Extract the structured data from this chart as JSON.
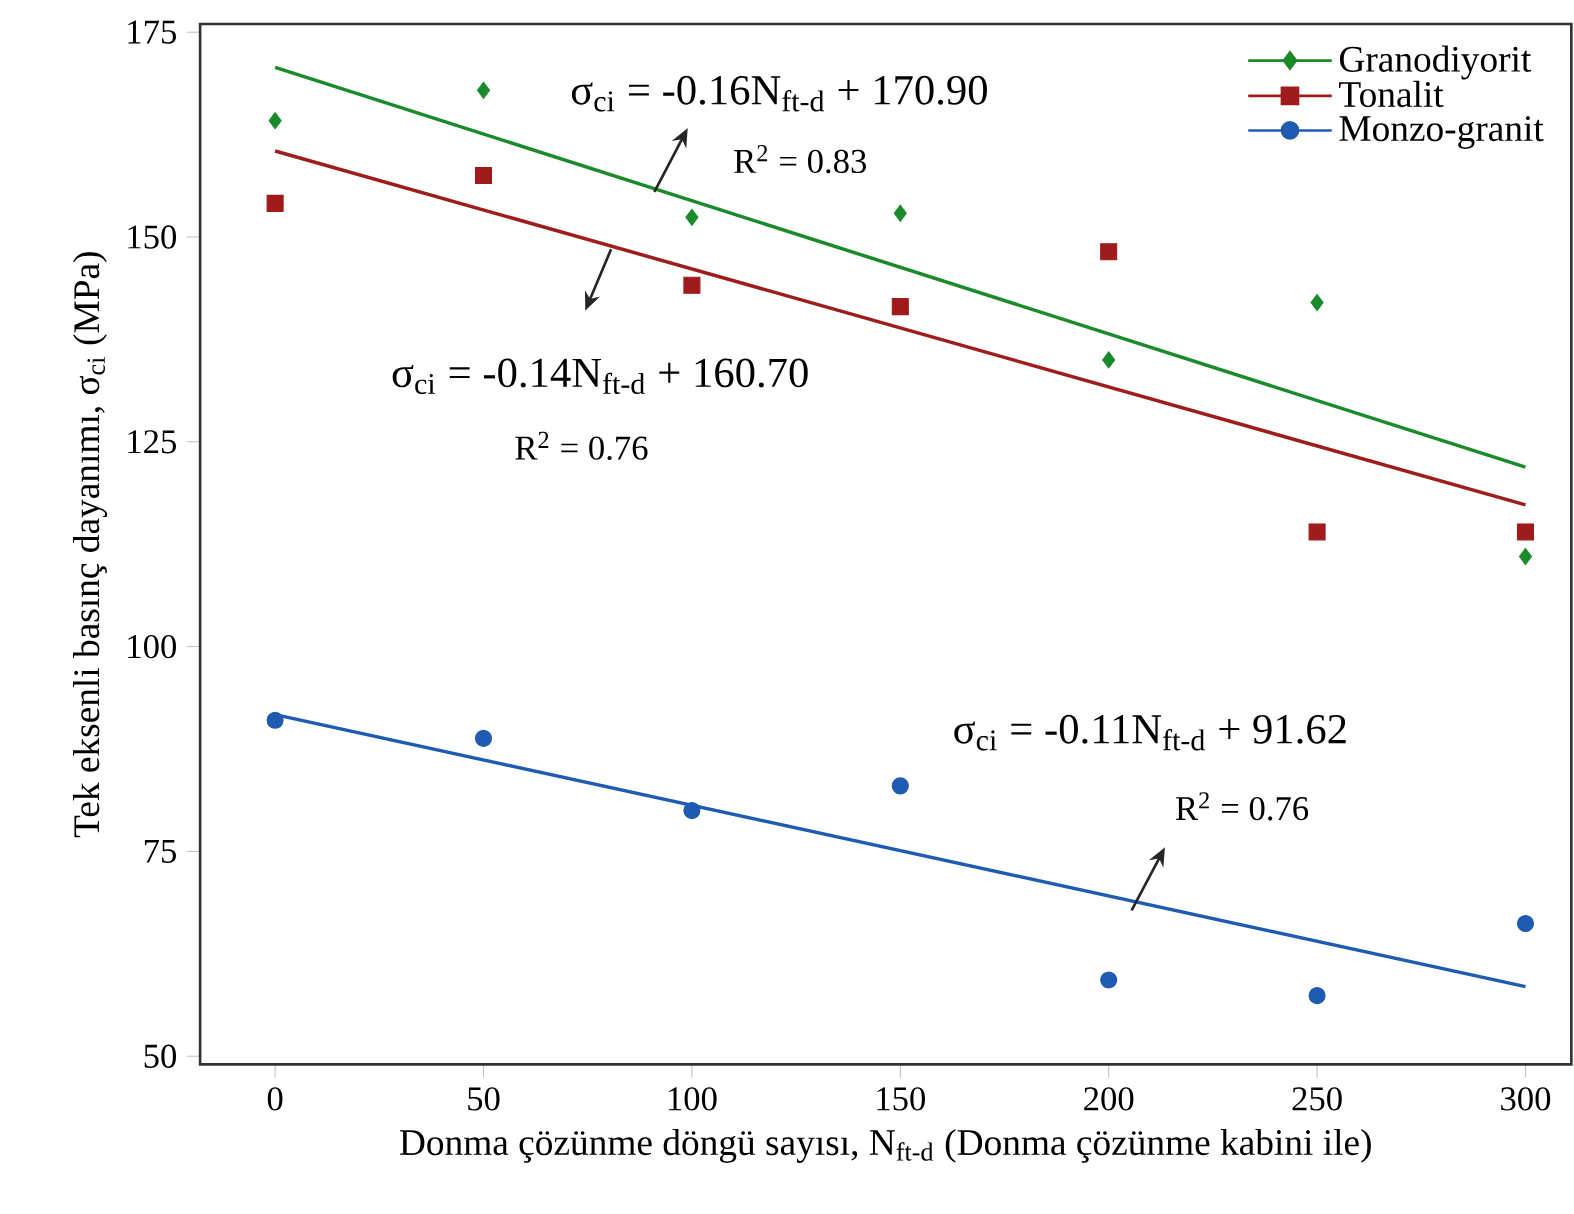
{
  "chart_data": {
    "type": "scatter",
    "xlabel": "Donma çözünme döngü sayısı, N$_{ft-d}$ (Donma çözünme kabini ile)",
    "ylabel": "Tek eksenli basınç dayanımı, σ$_{ci}$ (MPa)",
    "xlim": [
      -18,
      311
    ],
    "ylim": [
      49,
      176
    ],
    "xticks": [
      0,
      50,
      100,
      150,
      200,
      250,
      300
    ],
    "yticks": [
      50,
      75,
      100,
      125,
      150,
      175
    ],
    "grid": false,
    "legend": "top right",
    "series": [
      {
        "name": "Granodiyorit",
        "color": "#1a8a2a",
        "marker": "diamond",
        "x": [
          0,
          50,
          100,
          150,
          200,
          250,
          300
        ],
        "values": [
          164.2,
          167.9,
          152.4,
          152.9,
          135.0,
          142.0,
          111.0
        ]
      },
      {
        "name": "Tonalit",
        "color": "#a01c1c",
        "marker": "square",
        "x": [
          0,
          50,
          100,
          150,
          200,
          250,
          300
        ],
        "values": [
          154.1,
          157.5,
          144.1,
          141.5,
          148.2,
          114.0,
          114.0
        ]
      },
      {
        "name": "Monzo-granit",
        "color": "#1f5bb0",
        "marker": "circle",
        "x": [
          0,
          50,
          100,
          150,
          200,
          250,
          300
        ],
        "values": [
          91.0,
          88.8,
          80.0,
          83.0,
          59.3,
          57.4,
          66.2
        ]
      },
      {
        "type": "line",
        "color": "#1a8a2a",
        "x": [
          0,
          300
        ],
        "values": [
          170.7,
          121.9
        ]
      },
      {
        "type": "line",
        "color": "#a01c1c",
        "x": [
          0,
          300
        ],
        "values": [
          160.5,
          117.3
        ]
      },
      {
        "type": "line",
        "color": "#1f5bb0",
        "x": [
          0,
          300
        ],
        "values": [
          91.7,
          58.5
        ]
      }
    ],
    "annotations": [
      "σ$_{ci}$ = -0.16N$_{ft-d}$ + 170.90",
      "R$^{2}$ = 0.83",
      "σ$_{ci}$ = -0.14N$_{ft-d}$ + 160.70",
      "R$^{2}$ = 0.76",
      "σ$_{ci}$ = -0.11N$_{ft-d}$ + 91.62",
      "R$^{2}$ = 0.76"
    ]
  }
}
